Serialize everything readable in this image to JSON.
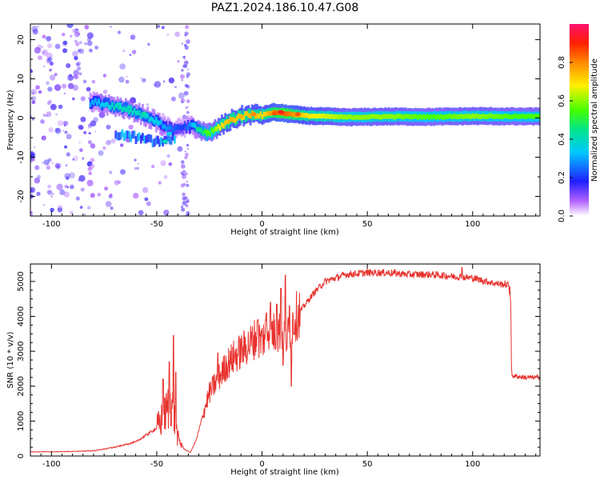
{
  "title": "PAZ1.2024.186.10.47.G08",
  "colors": {
    "snr_line": "#e8332e",
    "frame": "#000000"
  },
  "chart_data": [
    {
      "type": "heatmap",
      "xlabel": "Height of straight line (km)",
      "ylabel": "Frequency (Hz)",
      "xlim": [
        -110,
        132
      ],
      "ylim": [
        -25,
        24
      ],
      "xticks": [
        -100,
        -50,
        0,
        50,
        100
      ],
      "yticks": [
        -20,
        -10,
        0,
        10,
        20
      ],
      "colorbar": {
        "label": "Normalized spectral amplitude",
        "ticks": [
          0.0,
          0.2,
          0.4,
          0.6,
          0.8
        ],
        "tick_labels": [
          "0.0",
          "0.2",
          "0.4",
          "0.6",
          "0.8"
        ],
        "range": [
          0,
          1
        ],
        "colormap": [
          "#ffffff",
          "#8a1cff",
          "#2020ff",
          "#00c8ff",
          "#00e58a",
          "#44ff00",
          "#fff000",
          "#ff8a00",
          "#ff2000",
          "#ff1070"
        ]
      },
      "ridge": {
        "x": [
          -80,
          -70,
          -60,
          -52,
          -47,
          -43,
          -38,
          -34,
          -30,
          -27,
          -24,
          -20,
          -15,
          -10,
          -5,
          0,
          5,
          10,
          20,
          40,
          60,
          80,
          100,
          120,
          132
        ],
        "freq": [
          4,
          3,
          1.5,
          -0.5,
          -2,
          -3,
          -2.5,
          -2,
          -3,
          -4,
          -3.5,
          -2,
          -0.5,
          0.5,
          1,
          0.8,
          1.5,
          1.2,
          0.6,
          0.2,
          0.4,
          0.3,
          0.5,
          0.4,
          0.4
        ],
        "amplitude": [
          0.3,
          0.4,
          0.4,
          0.35,
          0.3,
          0.25,
          0.2,
          0.3,
          0.45,
          0.5,
          0.55,
          0.7,
          0.75,
          0.7,
          0.75,
          0.7,
          0.8,
          0.85,
          0.7,
          0.6,
          0.6,
          0.55,
          0.6,
          0.55,
          0.55
        ]
      },
      "lower_branch": {
        "x": [
          -70,
          -60,
          -52,
          -47,
          -42
        ],
        "freq": [
          -4,
          -5,
          -6,
          -6,
          -5
        ]
      }
    },
    {
      "type": "line",
      "xlabel": "Height of straight line (km)",
      "ylabel": "SNR (10 * v/v)",
      "xlim": [
        -110,
        132
      ],
      "ylim": [
        0,
        5500
      ],
      "xticks": [
        -100,
        -50,
        0,
        50,
        100
      ],
      "yticks": [
        0,
        1000,
        2000,
        3000,
        4000,
        5000
      ],
      "series": [
        {
          "x": [
            -110,
            -100,
            -90,
            -80,
            -70,
            -60,
            -55,
            -50,
            -46,
            -43,
            -40,
            -37,
            -34,
            -31,
            -28,
            -25,
            -22,
            -20,
            -17,
            -14,
            -10,
            -6,
            -3,
            0,
            3,
            6,
            9,
            12,
            15,
            20,
            25,
            30,
            40,
            50,
            60,
            70,
            80,
            90,
            100,
            110,
            117,
            118,
            118.5,
            125,
            132
          ],
          "y": [
            120,
            120,
            130,
            150,
            250,
            400,
            600,
            800,
            1200,
            1600,
            500,
            200,
            100,
            500,
            1200,
            1800,
            2100,
            2300,
            2600,
            2800,
            3000,
            3200,
            3400,
            3300,
            3700,
            3500,
            3600,
            3400,
            3900,
            4300,
            4700,
            5000,
            5200,
            5250,
            5250,
            5200,
            5200,
            5150,
            5100,
            4950,
            4900,
            4800,
            2300,
            2250,
            2250
          ],
          "spikes": [
            {
              "x": -47,
              "y": 2200
            },
            {
              "x": -44,
              "y": 2700
            },
            {
              "x": -42,
              "y": 3450
            },
            {
              "x": -41,
              "y": 2400
            },
            {
              "x": -21,
              "y": 2950
            },
            {
              "x": -15,
              "y": 3000
            },
            {
              "x": -8,
              "y": 3400
            },
            {
              "x": -2,
              "y": 3900
            },
            {
              "x": 2,
              "y": 4100
            },
            {
              "x": 4,
              "y": 4400
            },
            {
              "x": 7,
              "y": 4350
            },
            {
              "x": 9,
              "y": 4800
            },
            {
              "x": 11,
              "y": 5180
            },
            {
              "x": 13,
              "y": 4300
            },
            {
              "x": 14,
              "y": 2000
            },
            {
              "x": 10,
              "y": 2600
            },
            {
              "x": 95,
              "y": 5400
            }
          ]
        }
      ]
    }
  ]
}
